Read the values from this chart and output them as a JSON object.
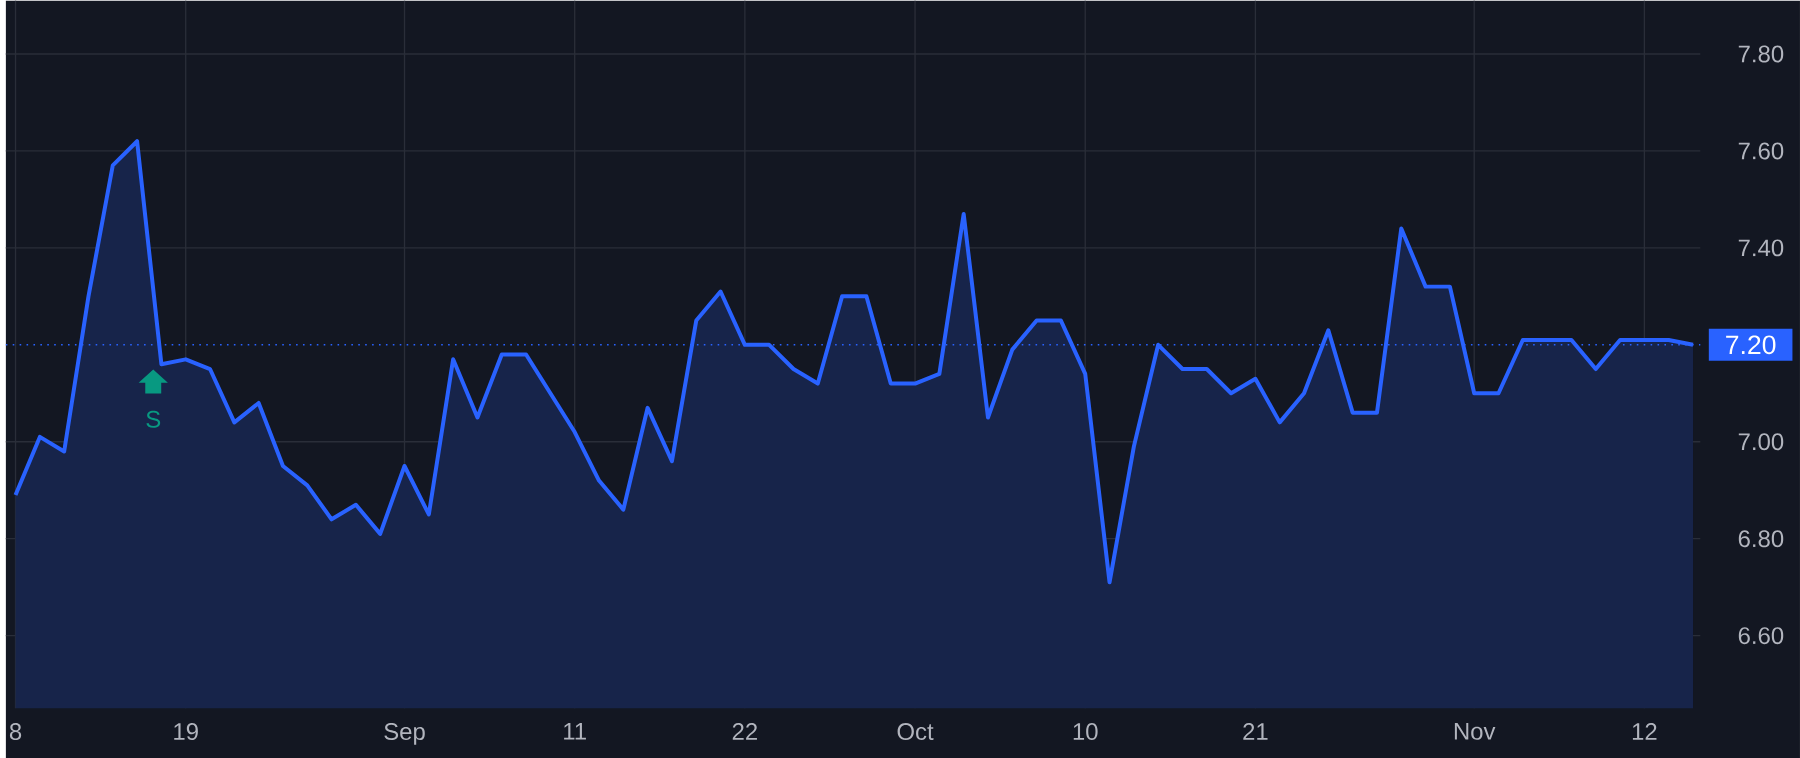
{
  "chart_data": {
    "type": "area",
    "categories": [
      "8",
      null,
      null,
      null,
      null,
      null,
      null,
      "19",
      null,
      null,
      null,
      null,
      null,
      null,
      null,
      null,
      "Sep",
      null,
      null,
      null,
      null,
      null,
      null,
      "11",
      null,
      null,
      null,
      null,
      null,
      null,
      "22",
      null,
      null,
      null,
      null,
      null,
      null,
      "Oct",
      null,
      null,
      null,
      null,
      null,
      null,
      "10",
      null,
      null,
      null,
      null,
      null,
      null,
      "21",
      null,
      null,
      null,
      null,
      null,
      null,
      null,
      null,
      "Nov",
      null,
      null,
      null,
      null,
      null,
      null,
      "12",
      null,
      null
    ],
    "series": [
      {
        "color": "#2962ff",
        "values": [
          6.89,
          7.01,
          6.98,
          7.3,
          7.57,
          7.62,
          7.16,
          7.17,
          7.15,
          7.04,
          7.08,
          6.95,
          6.91,
          6.84,
          6.87,
          6.81,
          6.95,
          6.85,
          7.17,
          7.05,
          7.18,
          7.18,
          7.1,
          7.02,
          6.92,
          6.86,
          7.07,
          6.96,
          7.25,
          7.31,
          7.2,
          7.2,
          7.15,
          7.12,
          7.3,
          7.3,
          7.12,
          7.12,
          7.14,
          7.47,
          7.05,
          7.19,
          7.25,
          7.25,
          7.14,
          6.71,
          6.99,
          7.2,
          7.15,
          7.15,
          7.1,
          7.13,
          7.04,
          7.1,
          7.23,
          7.06,
          7.06,
          7.44,
          7.32,
          7.32,
          7.1,
          7.1,
          7.21,
          7.21,
          7.21,
          7.15,
          7.21,
          7.21,
          7.21,
          7.2
        ]
      }
    ],
    "ylim": [
      6.45,
      7.91
    ],
    "yticks": [
      {
        "value": 6.6,
        "label": "6.60"
      },
      {
        "value": 6.8,
        "label": "6.80"
      },
      {
        "value": 7.0,
        "label": "7.00"
      },
      {
        "value": 7.4,
        "label": "7.40"
      },
      {
        "value": 7.6,
        "label": "7.60"
      },
      {
        "value": 7.8,
        "label": "7.80"
      }
    ],
    "grid": true,
    "marker": "none",
    "ref_lines": [
      {
        "axis": "y",
        "value": 7.2,
        "label": "7.20",
        "color": "#2962ff",
        "line_style": "dotted"
      }
    ],
    "annotations": [
      "S"
    ]
  }
}
